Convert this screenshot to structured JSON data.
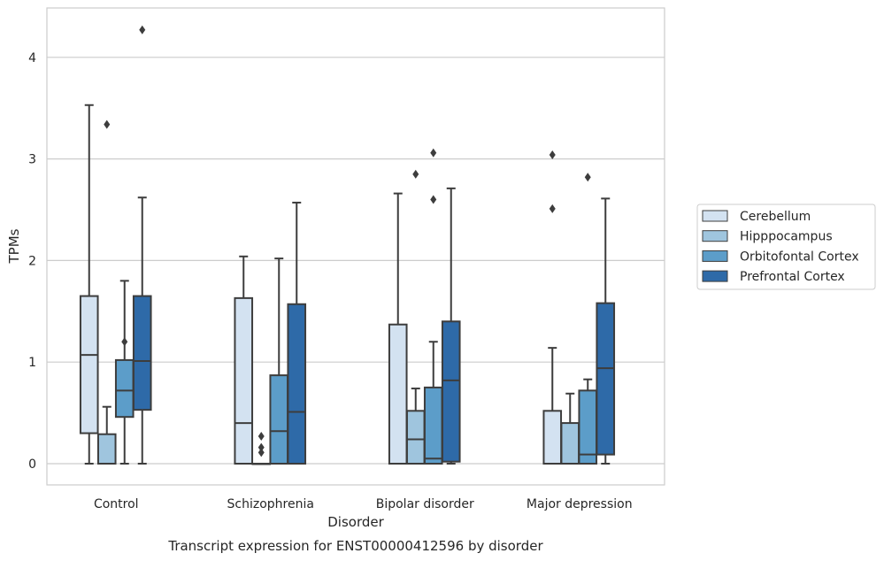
{
  "chart_data": {
    "type": "box",
    "caption": "Transcript expression for ENST00000412596 by disorder",
    "xlabel": "Disorder",
    "ylabel": "TPMs",
    "ylim": [
      -0.2,
      4.5
    ],
    "yticks": [
      0,
      1,
      2,
      3,
      4
    ],
    "grid": "horizontal",
    "legend_position": "right",
    "categories": [
      "Control",
      "Schizophrenia",
      "Bipolar disorder",
      "Major depression"
    ],
    "series": [
      {
        "name": "Cerebellum",
        "color": "#d3e2f1",
        "boxes": [
          {
            "whisker_low": 0,
            "q1": 0.3,
            "median": 1.07,
            "q3": 1.65,
            "whisker_high": 3.53,
            "outliers": []
          },
          {
            "whisker_low": 0,
            "q1": 0,
            "median": 0.4,
            "q3": 1.63,
            "whisker_high": 2.04,
            "outliers": []
          },
          {
            "whisker_low": 0,
            "q1": 0,
            "median": 0,
            "q3": 1.37,
            "whisker_high": 2.66,
            "outliers": []
          },
          {
            "whisker_low": 0,
            "q1": 0,
            "median": 0,
            "q3": 0.52,
            "whisker_high": 1.14,
            "outliers": [
              2.51,
              3.04
            ]
          }
        ]
      },
      {
        "name": "Hipppocampus",
        "color": "#9fc5de",
        "boxes": [
          {
            "whisker_low": 0,
            "q1": 0,
            "median": 0,
            "q3": 0.29,
            "whisker_high": 0.56,
            "outliers": [
              3.34
            ]
          },
          {
            "whisker_low": 0,
            "q1": 0,
            "median": 0,
            "q3": 0,
            "whisker_high": 0,
            "outliers": [
              0.11,
              0.16,
              0.27
            ]
          },
          {
            "whisker_low": 0,
            "q1": 0,
            "median": 0.24,
            "q3": 0.52,
            "whisker_high": 0.74,
            "outliers": [
              2.85
            ]
          },
          {
            "whisker_low": 0,
            "q1": 0,
            "median": 0,
            "q3": 0.4,
            "whisker_high": 0.69,
            "outliers": []
          }
        ]
      },
      {
        "name": "Orbitofontal Cortex",
        "color": "#5c9dc9",
        "boxes": [
          {
            "whisker_low": 0,
            "q1": 0.46,
            "median": 0.72,
            "q3": 1.02,
            "whisker_high": 1.8,
            "outliers": [
              1.2
            ]
          },
          {
            "whisker_low": 0,
            "q1": 0,
            "median": 0.32,
            "q3": 0.87,
            "whisker_high": 2.02,
            "outliers": []
          },
          {
            "whisker_low": 0,
            "q1": 0,
            "median": 0.05,
            "q3": 0.75,
            "whisker_high": 1.2,
            "outliers": [
              2.6,
              3.06
            ]
          },
          {
            "whisker_low": 0,
            "q1": 0,
            "median": 0.09,
            "q3": 0.72,
            "whisker_high": 0.83,
            "outliers": [
              2.82
            ]
          }
        ]
      },
      {
        "name": "Prefrontal Cortex",
        "color": "#2e6aa8",
        "boxes": [
          {
            "whisker_low": 0,
            "q1": 0.53,
            "median": 1.01,
            "q3": 1.65,
            "whisker_high": 2.62,
            "outliers": [
              4.27
            ]
          },
          {
            "whisker_low": 0,
            "q1": 0,
            "median": 0.51,
            "q3": 1.57,
            "whisker_high": 2.57,
            "outliers": []
          },
          {
            "whisker_low": 0,
            "q1": 0.02,
            "median": 0.82,
            "q3": 1.4,
            "whisker_high": 2.71,
            "outliers": []
          },
          {
            "whisker_low": 0,
            "q1": 0.09,
            "median": 0.94,
            "q3": 1.58,
            "whisker_high": 2.61,
            "outliers": []
          }
        ]
      }
    ]
  }
}
